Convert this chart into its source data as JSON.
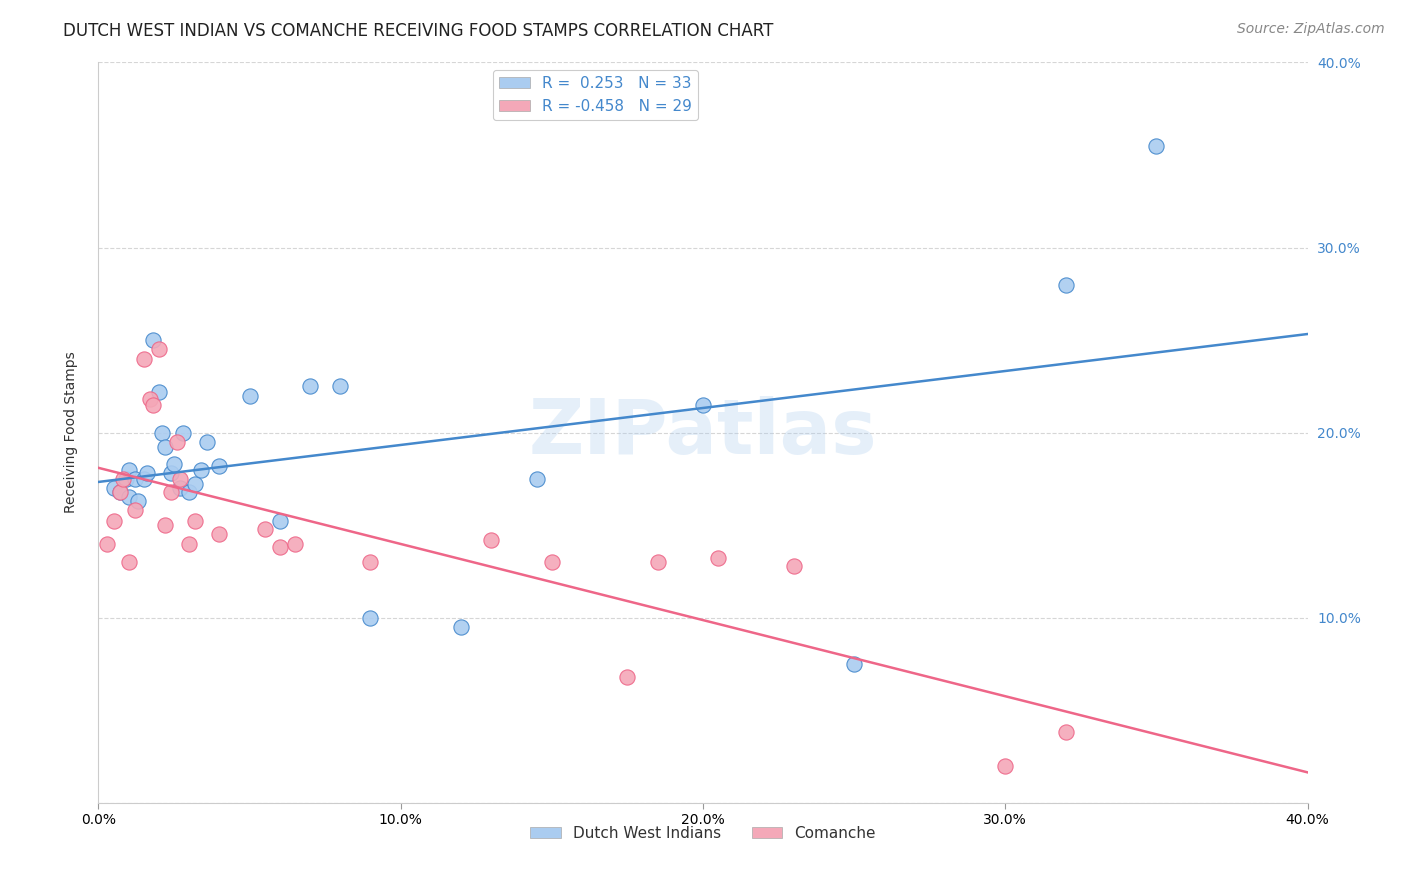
{
  "title": "DUTCH WEST INDIAN VS COMANCHE RECEIVING FOOD STAMPS CORRELATION CHART",
  "source": "Source: ZipAtlas.com",
  "ylabel": "Receiving Food Stamps",
  "xlim": [
    0.0,
    0.4
  ],
  "ylim": [
    0.0,
    0.4
  ],
  "xtick_vals": [
    0.0,
    0.1,
    0.2,
    0.3,
    0.4
  ],
  "xtick_labels": [
    "0.0%",
    "10.0%",
    "20.0%",
    "30.0%",
    "40.0%"
  ],
  "ytick_vals": [
    0.0,
    0.1,
    0.2,
    0.3,
    0.4
  ],
  "ytick_labels_right": [
    "",
    "10.0%",
    "20.0%",
    "30.0%",
    "40.0%"
  ],
  "watermark": "ZIPatlas",
  "blue_color": "#aaccf0",
  "pink_color": "#f4a8b8",
  "blue_line_color": "#4488cc",
  "pink_line_color": "#ee6688",
  "blue_R": 0.253,
  "blue_N": 33,
  "pink_R": -0.458,
  "pink_N": 29,
  "legend_label_blue": "Dutch West Indians",
  "legend_label_pink": "Comanche",
  "background_color": "#ffffff",
  "grid_color": "#cccccc",
  "blue_scatter_x": [
    0.005,
    0.007,
    0.009,
    0.01,
    0.01,
    0.012,
    0.013,
    0.015,
    0.016,
    0.018,
    0.02,
    0.021,
    0.022,
    0.024,
    0.025,
    0.027,
    0.028,
    0.03,
    0.032,
    0.034,
    0.036,
    0.04,
    0.05,
    0.06,
    0.07,
    0.08,
    0.09,
    0.12,
    0.145,
    0.2,
    0.25,
    0.32,
    0.35
  ],
  "blue_scatter_y": [
    0.17,
    0.168,
    0.175,
    0.165,
    0.18,
    0.175,
    0.163,
    0.175,
    0.178,
    0.25,
    0.222,
    0.2,
    0.192,
    0.178,
    0.183,
    0.17,
    0.2,
    0.168,
    0.172,
    0.18,
    0.195,
    0.182,
    0.22,
    0.152,
    0.225,
    0.225,
    0.1,
    0.095,
    0.175,
    0.215,
    0.075,
    0.28,
    0.355
  ],
  "pink_scatter_x": [
    0.003,
    0.005,
    0.007,
    0.008,
    0.01,
    0.012,
    0.015,
    0.017,
    0.018,
    0.02,
    0.022,
    0.024,
    0.026,
    0.027,
    0.03,
    0.032,
    0.04,
    0.055,
    0.06,
    0.065,
    0.09,
    0.13,
    0.15,
    0.175,
    0.185,
    0.205,
    0.23,
    0.3,
    0.32
  ],
  "pink_scatter_y": [
    0.14,
    0.152,
    0.168,
    0.175,
    0.13,
    0.158,
    0.24,
    0.218,
    0.215,
    0.245,
    0.15,
    0.168,
    0.195,
    0.175,
    0.14,
    0.152,
    0.145,
    0.148,
    0.138,
    0.14,
    0.13,
    0.142,
    0.13,
    0.068,
    0.13,
    0.132,
    0.128,
    0.02,
    0.038
  ],
  "title_fontsize": 12,
  "axis_label_fontsize": 10,
  "tick_fontsize": 10,
  "source_fontsize": 10,
  "scatter_size": 120
}
